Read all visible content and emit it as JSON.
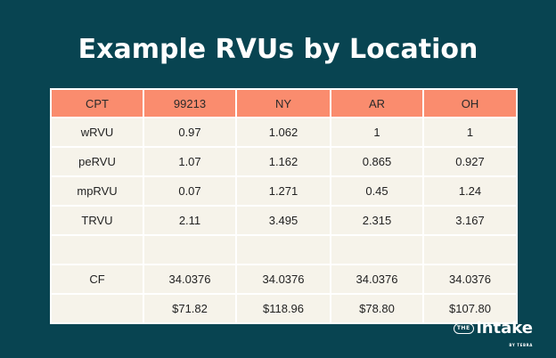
{
  "title": "Example RVUs by Location",
  "table": {
    "headers": [
      "CPT",
      "99213",
      "NY",
      "AR",
      "OH"
    ],
    "rows": [
      [
        "wRVU",
        "0.97",
        "1.062",
        "1",
        "1"
      ],
      [
        "peRVU",
        "1.07",
        "1.162",
        "0.865",
        "0.927"
      ],
      [
        "mpRVU",
        "0.07",
        "1.271",
        "0.45",
        "1.24"
      ],
      [
        "TRVU",
        "2.11",
        "3.495",
        "2.315",
        "3.167"
      ],
      [
        "",
        "",
        "",
        "",
        ""
      ],
      [
        "CF",
        "34.0376",
        "34.0376",
        "34.0376",
        "34.0376"
      ],
      [
        "",
        "$71.82",
        "$118.96",
        "$78.80",
        "$107.80"
      ]
    ]
  },
  "logo": {
    "badge": "THE",
    "brand": "intake",
    "byline": "BY TEBRA"
  },
  "colors": {
    "background": "#084451",
    "header": "#fa8c6e",
    "table_body": "#f6f3ea"
  }
}
